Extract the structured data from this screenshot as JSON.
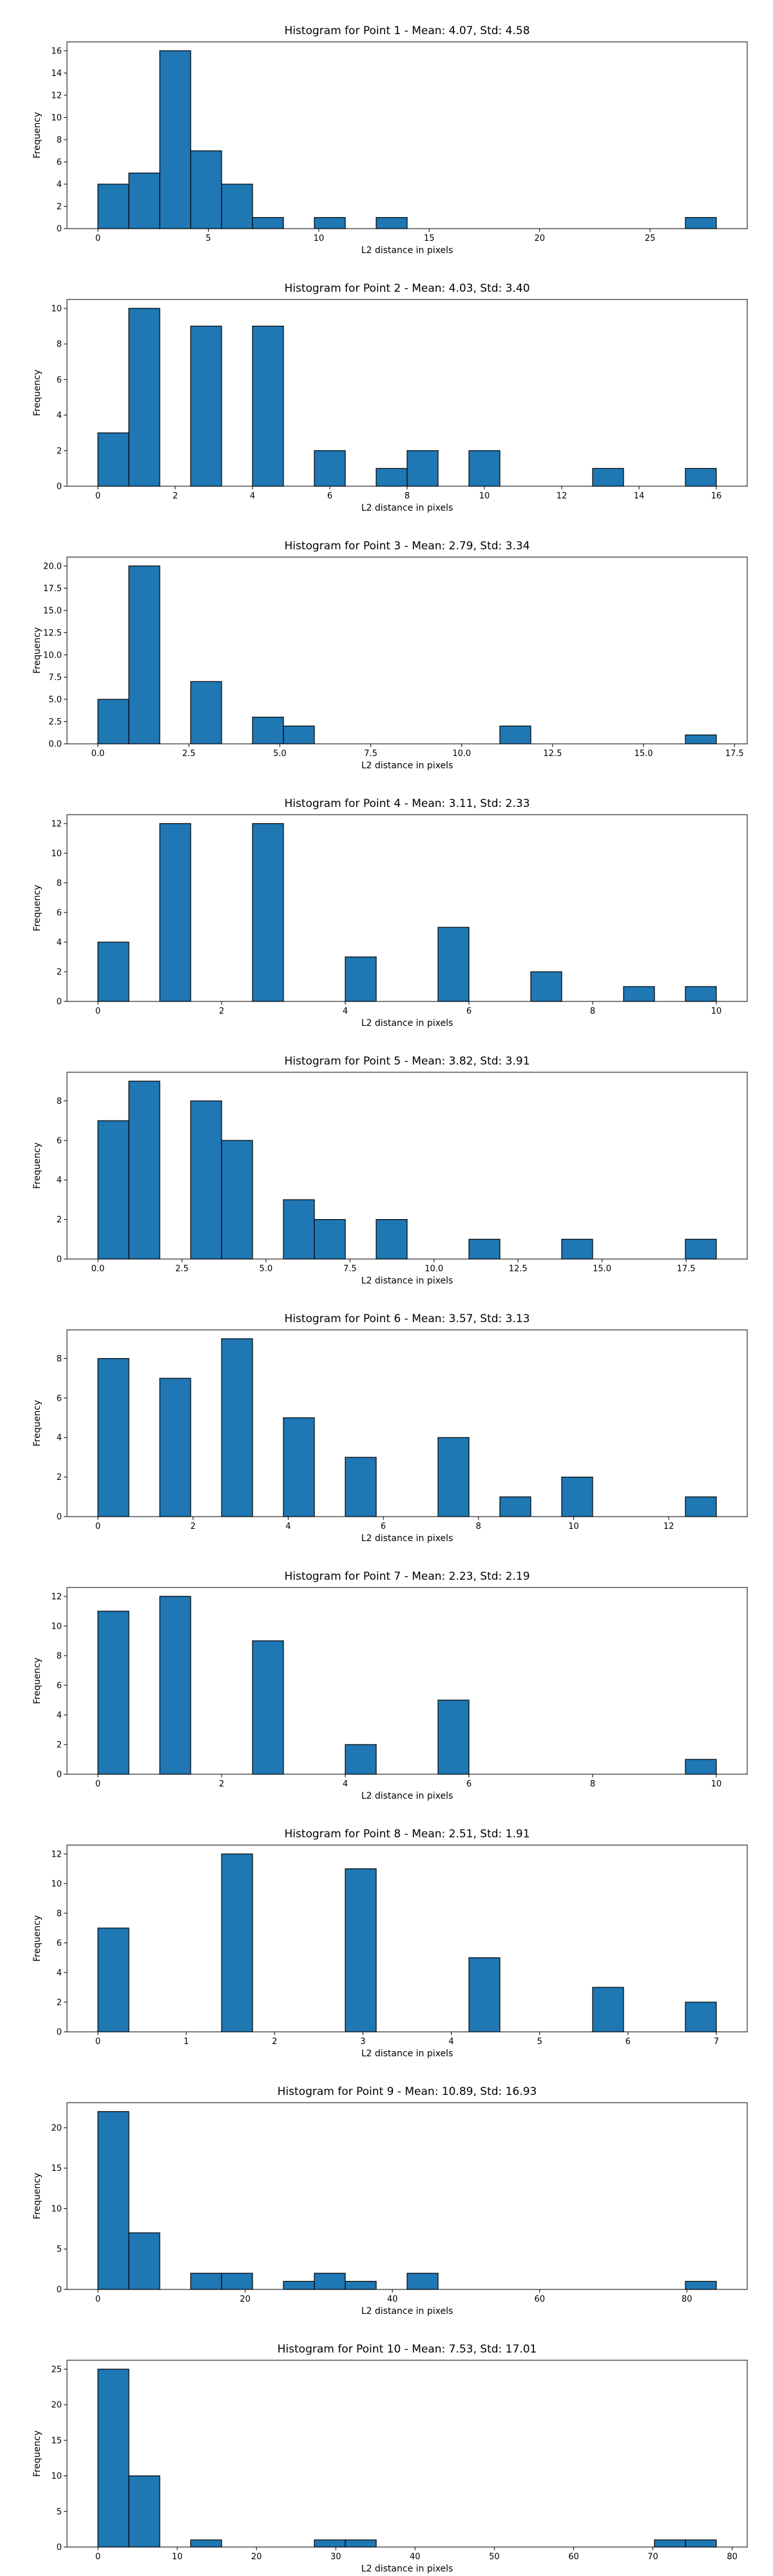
{
  "chart_data": [
    {
      "type": "bar",
      "title": "Histogram for Point 1 - Mean: 4.07, Std: 4.58",
      "xlabel": "L2 distance in pixels",
      "ylabel": "Frequency",
      "bins": [
        [
          0.0,
          1.4,
          4
        ],
        [
          1.4,
          2.8,
          5
        ],
        [
          2.8,
          4.2,
          16
        ],
        [
          4.2,
          5.6,
          7
        ],
        [
          5.6,
          7.0,
          4
        ],
        [
          7.0,
          8.4,
          1
        ],
        [
          9.8,
          11.2,
          1
        ],
        [
          12.6,
          14.0,
          1
        ],
        [
          26.6,
          28.0,
          1
        ]
      ],
      "xlim": [
        -1.4,
        29.4
      ],
      "ylim": [
        0,
        16.8
      ],
      "xticks": [
        0,
        5,
        10,
        15,
        20,
        25
      ],
      "yticks": [
        0,
        2,
        4,
        6,
        8,
        10,
        12,
        14,
        16
      ],
      "xtick_labels": [
        "0",
        "5",
        "10",
        "15",
        "20",
        "25"
      ],
      "ytick_labels": [
        "0",
        "2",
        "4",
        "6",
        "8",
        "10",
        "12",
        "14",
        "16"
      ]
    },
    {
      "type": "bar",
      "title": "Histogram for Point 2 - Mean: 4.03, Std: 3.40",
      "xlabel": "L2 distance in pixels",
      "ylabel": "Frequency",
      "bins": [
        [
          0.0,
          0.8,
          3
        ],
        [
          0.8,
          1.6,
          10
        ],
        [
          2.4,
          3.2,
          9
        ],
        [
          4.0,
          4.8,
          9
        ],
        [
          5.6,
          6.4,
          2
        ],
        [
          7.2,
          8.0,
          1
        ],
        [
          8.0,
          8.8,
          2
        ],
        [
          9.6,
          10.4,
          2
        ],
        [
          12.8,
          13.6,
          1
        ],
        [
          15.2,
          16.0,
          1
        ]
      ],
      "xlim": [
        -0.8,
        16.8
      ],
      "ylim": [
        0,
        10.5
      ],
      "xticks": [
        0,
        2,
        4,
        6,
        8,
        10,
        12,
        14,
        16
      ],
      "yticks": [
        0,
        2,
        4,
        6,
        8,
        10
      ],
      "xtick_labels": [
        "0",
        "2",
        "4",
        "6",
        "8",
        "10",
        "12",
        "14",
        "16"
      ],
      "ytick_labels": [
        "0",
        "2",
        "4",
        "6",
        "8",
        "10"
      ]
    },
    {
      "type": "bar",
      "title": "Histogram for Point 3 - Mean: 2.79, Std: 3.34",
      "xlabel": "L2 distance in pixels",
      "ylabel": "Frequency",
      "bins": [
        [
          0.0,
          0.85,
          5
        ],
        [
          0.85,
          1.7,
          20
        ],
        [
          2.55,
          3.4,
          7
        ],
        [
          4.25,
          5.1,
          3
        ],
        [
          5.1,
          5.95,
          2
        ],
        [
          11.05,
          11.9,
          2
        ],
        [
          16.15,
          17.0,
          1
        ]
      ],
      "xlim": [
        -0.85,
        17.85
      ],
      "ylim": [
        0,
        21
      ],
      "xticks": [
        0,
        2.5,
        5,
        7.5,
        10,
        12.5,
        15,
        17.5
      ],
      "yticks": [
        0,
        2.5,
        5,
        7.5,
        10,
        12.5,
        15,
        17.5,
        20
      ],
      "xtick_labels": [
        "0.0",
        "2.5",
        "5.0",
        "7.5",
        "10.0",
        "12.5",
        "15.0",
        "17.5"
      ],
      "ytick_labels": [
        "0.0",
        "2.5",
        "5.0",
        "7.5",
        "10.0",
        "12.5",
        "15.0",
        "17.5",
        "20.0"
      ]
    },
    {
      "type": "bar",
      "title": "Histogram for Point 4 - Mean: 3.11, Std: 2.33",
      "xlabel": "L2 distance in pixels",
      "ylabel": "Frequency",
      "bins": [
        [
          0.0,
          0.5,
          4
        ],
        [
          1.0,
          1.5,
          12
        ],
        [
          2.5,
          3.0,
          12
        ],
        [
          4.0,
          4.5,
          3
        ],
        [
          5.5,
          6.0,
          5
        ],
        [
          7.0,
          7.5,
          2
        ],
        [
          8.5,
          9.0,
          1
        ],
        [
          9.5,
          10.0,
          1
        ]
      ],
      "xlim": [
        -0.5,
        10.5
      ],
      "ylim": [
        0,
        12.6
      ],
      "xticks": [
        0,
        2,
        4,
        6,
        8,
        10
      ],
      "yticks": [
        0,
        2,
        4,
        6,
        8,
        10,
        12
      ],
      "xtick_labels": [
        "0",
        "2",
        "4",
        "6",
        "8",
        "10"
      ],
      "ytick_labels": [
        "0",
        "2",
        "4",
        "6",
        "8",
        "10",
        "12"
      ]
    },
    {
      "type": "bar",
      "title": "Histogram for Point 5 - Mean: 3.82, Std: 3.91",
      "xlabel": "L2 distance in pixels",
      "ylabel": "Frequency",
      "bins": [
        [
          0.0,
          0.92,
          7
        ],
        [
          0.92,
          1.84,
          9
        ],
        [
          2.76,
          3.68,
          8
        ],
        [
          3.68,
          4.6,
          6
        ],
        [
          5.52,
          6.44,
          3
        ],
        [
          6.44,
          7.36,
          2
        ],
        [
          8.28,
          9.2,
          2
        ],
        [
          11.04,
          11.96,
          1
        ],
        [
          13.8,
          14.72,
          1
        ],
        [
          17.48,
          18.4,
          1
        ]
      ],
      "xlim": [
        -0.92,
        19.32
      ],
      "ylim": [
        0,
        9.45
      ],
      "xticks": [
        0,
        2.5,
        5,
        7.5,
        10,
        12.5,
        15,
        17.5
      ],
      "yticks": [
        0,
        2,
        4,
        6,
        8
      ],
      "xtick_labels": [
        "0.0",
        "2.5",
        "5.0",
        "7.5",
        "10.0",
        "12.5",
        "15.0",
        "17.5"
      ],
      "ytick_labels": [
        "0",
        "2",
        "4",
        "6",
        "8"
      ]
    },
    {
      "type": "bar",
      "title": "Histogram for Point 6 - Mean: 3.57, Std: 3.13",
      "xlabel": "L2 distance in pixels",
      "ylabel": "Frequency",
      "bins": [
        [
          0.0,
          0.65,
          8
        ],
        [
          1.3,
          1.95,
          7
        ],
        [
          2.6,
          3.25,
          9
        ],
        [
          3.9,
          4.55,
          5
        ],
        [
          5.2,
          5.85,
          3
        ],
        [
          7.15,
          7.8,
          4
        ],
        [
          8.45,
          9.1,
          1
        ],
        [
          9.75,
          10.4,
          2
        ],
        [
          12.35,
          13.0,
          1
        ]
      ],
      "xlim": [
        -0.65,
        13.65
      ],
      "ylim": [
        0,
        9.45
      ],
      "xticks": [
        0,
        2,
        4,
        6,
        8,
        10,
        12
      ],
      "yticks": [
        0,
        2,
        4,
        6,
        8
      ],
      "xtick_labels": [
        "0",
        "2",
        "4",
        "6",
        "8",
        "10",
        "12"
      ],
      "ytick_labels": [
        "0",
        "2",
        "4",
        "6",
        "8"
      ]
    },
    {
      "type": "bar",
      "title": "Histogram for Point 7 - Mean: 2.23, Std: 2.19",
      "xlabel": "L2 distance in pixels",
      "ylabel": "Frequency",
      "bins": [
        [
          0.0,
          0.5,
          11
        ],
        [
          1.0,
          1.5,
          12
        ],
        [
          2.5,
          3.0,
          9
        ],
        [
          4.0,
          4.5,
          2
        ],
        [
          5.5,
          6.0,
          5
        ],
        [
          9.5,
          10.0,
          1
        ]
      ],
      "xlim": [
        -0.5,
        10.5
      ],
      "ylim": [
        0,
        12.6
      ],
      "xticks": [
        0,
        2,
        4,
        6,
        8,
        10
      ],
      "yticks": [
        0,
        2,
        4,
        6,
        8,
        10,
        12
      ],
      "xtick_labels": [
        "0",
        "2",
        "4",
        "6",
        "8",
        "10"
      ],
      "ytick_labels": [
        "0",
        "2",
        "4",
        "6",
        "8",
        "10",
        "12"
      ]
    },
    {
      "type": "bar",
      "title": "Histogram for Point 8 - Mean: 2.51, Std: 1.91",
      "xlabel": "L2 distance in pixels",
      "ylabel": "Frequency",
      "bins": [
        [
          0.0,
          0.35,
          7
        ],
        [
          1.4,
          1.75,
          12
        ],
        [
          2.8,
          3.15,
          11
        ],
        [
          4.2,
          4.55,
          5
        ],
        [
          5.6,
          5.95,
          3
        ],
        [
          6.65,
          7.0,
          2
        ]
      ],
      "xlim": [
        -0.35,
        7.35
      ],
      "ylim": [
        0,
        12.6
      ],
      "xticks": [
        0,
        1,
        2,
        3,
        4,
        5,
        6,
        7
      ],
      "yticks": [
        0,
        2,
        4,
        6,
        8,
        10,
        12
      ],
      "xtick_labels": [
        "0",
        "1",
        "2",
        "3",
        "4",
        "5",
        "6",
        "7"
      ],
      "ytick_labels": [
        "0",
        "2",
        "4",
        "6",
        "8",
        "10",
        "12"
      ]
    },
    {
      "type": "bar",
      "title": "Histogram for Point 9 - Mean: 10.89, Std: 16.93",
      "xlabel": "L2 distance in pixels",
      "ylabel": "Frequency",
      "bins": [
        [
          0.0,
          4.2,
          22
        ],
        [
          4.2,
          8.4,
          7
        ],
        [
          12.6,
          16.8,
          2
        ],
        [
          16.8,
          21.0,
          2
        ],
        [
          25.2,
          29.4,
          1
        ],
        [
          29.4,
          33.6,
          2
        ],
        [
          33.6,
          37.8,
          1
        ],
        [
          42.0,
          46.2,
          2
        ],
        [
          79.8,
          84.0,
          1
        ]
      ],
      "xlim": [
        -4.2,
        88.2
      ],
      "ylim": [
        0,
        23.1
      ],
      "xticks": [
        0,
        20,
        40,
        60,
        80
      ],
      "yticks": [
        0,
        5,
        10,
        15,
        20
      ],
      "xtick_labels": [
        "0",
        "20",
        "40",
        "60",
        "80"
      ],
      "ytick_labels": [
        "0",
        "5",
        "10",
        "15",
        "20"
      ]
    },
    {
      "type": "bar",
      "title": "Histogram for Point 10 - Mean: 7.53, Std: 17.01",
      "xlabel": "L2 distance in pixels",
      "ylabel": "Frequency",
      "bins": [
        [
          0.0,
          3.9,
          25
        ],
        [
          3.9,
          7.8,
          10
        ],
        [
          11.7,
          15.6,
          1
        ],
        [
          27.3,
          31.2,
          1
        ],
        [
          31.2,
          35.1,
          1
        ],
        [
          70.2,
          74.1,
          1
        ],
        [
          74.1,
          78.0,
          1
        ]
      ],
      "xlim": [
        -3.9,
        81.9
      ],
      "ylim": [
        0,
        26.25
      ],
      "xticks": [
        0,
        10,
        20,
        30,
        40,
        50,
        60,
        70,
        80
      ],
      "yticks": [
        0,
        5,
        10,
        15,
        20,
        25
      ],
      "xtick_labels": [
        "0",
        "10",
        "20",
        "30",
        "40",
        "50",
        "60",
        "70",
        "80"
      ],
      "ytick_labels": [
        "0",
        "5",
        "10",
        "15",
        "20",
        "25"
      ]
    }
  ]
}
